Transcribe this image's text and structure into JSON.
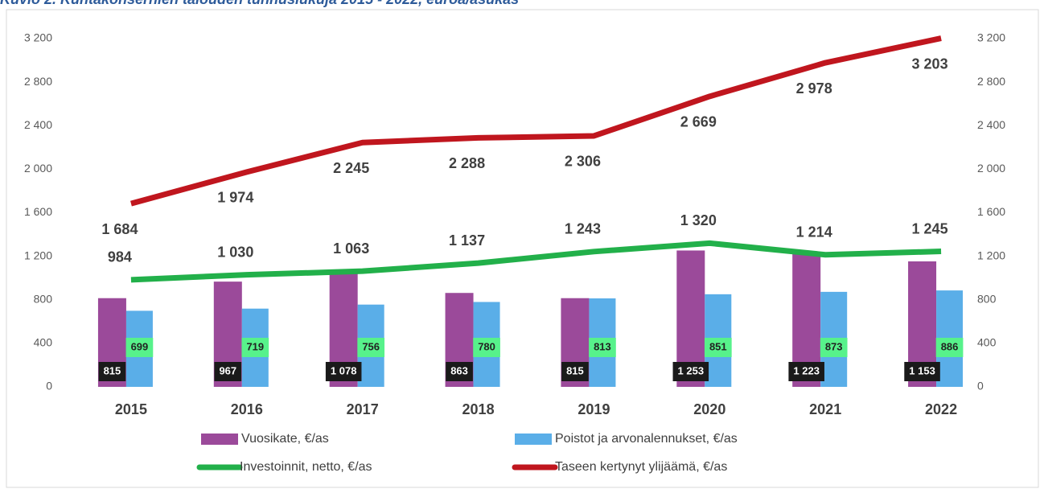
{
  "chart_data": {
    "type": "bar-line",
    "title": "Kuvio 2. Kuntakonsernien talouden tunnuslukuja 2015 - 2022, euroa/asukas",
    "categories": [
      "2015",
      "2016",
      "2017",
      "2018",
      "2019",
      "2020",
      "2021",
      "2022"
    ],
    "ylim": [
      0,
      3200
    ],
    "yticks": [
      0,
      400,
      800,
      {
        "value": 1200,
        "label": "1 200"
      },
      {
        "value": 1600,
        "label": "1 600"
      },
      {
        "value": 2000,
        "label": "2 000"
      },
      {
        "value": 2400,
        "label": "2 400"
      },
      {
        "value": 2800,
        "label": "2 800"
      },
      {
        "value": 3200,
        "label": "3 200"
      }
    ],
    "y2lim": [
      0,
      3200
    ],
    "y2ticks": [
      0,
      400,
      800,
      {
        "value": 1200,
        "label": "1 200"
      },
      {
        "value": 1600,
        "label": "1 600"
      },
      {
        "value": 2000,
        "label": "2 000"
      },
      {
        "value": 2400,
        "label": "2 400"
      },
      {
        "value": 2800,
        "label": "2 800"
      },
      {
        "value": 3200,
        "label": "3 200"
      }
    ],
    "grid": false,
    "series": [
      {
        "name": "Vuosikate, €/as",
        "type": "bar",
        "color": "#9b4a9a",
        "values": [
          815,
          967,
          1078,
          863,
          815,
          1253,
          1223,
          1153
        ],
        "value_labels": [
          "815",
          "967",
          "1 078",
          "863",
          "815",
          "1 253",
          "1 223",
          "1 153"
        ]
      },
      {
        "name": "Poistot ja arvonalennukset, €/as",
        "type": "bar",
        "color": "#5aaee8",
        "values": [
          699,
          719,
          756,
          780,
          813,
          851,
          873,
          886
        ]
      },
      {
        "name": "Investoinnit, netto, €/as",
        "type": "line",
        "axis": "y2",
        "color": "#22b04a",
        "values": [
          984,
          1030,
          1063,
          1137,
          1243,
          1320,
          1214,
          1245
        ],
        "value_labels": [
          "984",
          "1 030",
          "1 063",
          "1 137",
          "1 243",
          "1 320",
          "1 214",
          "1 245"
        ]
      },
      {
        "name": "Taseen kertynyt ylijäämä, €/as",
        "type": "line",
        "axis": "y2",
        "color": "#c0161e",
        "values": [
          1684,
          1974,
          2245,
          2288,
          2306,
          2669,
          2978,
          3203
        ],
        "value_labels": [
          "1 684",
          "1 974",
          "2 245",
          "2 288",
          "2 306",
          "2 669",
          "2 978",
          "3 203"
        ]
      }
    ]
  }
}
